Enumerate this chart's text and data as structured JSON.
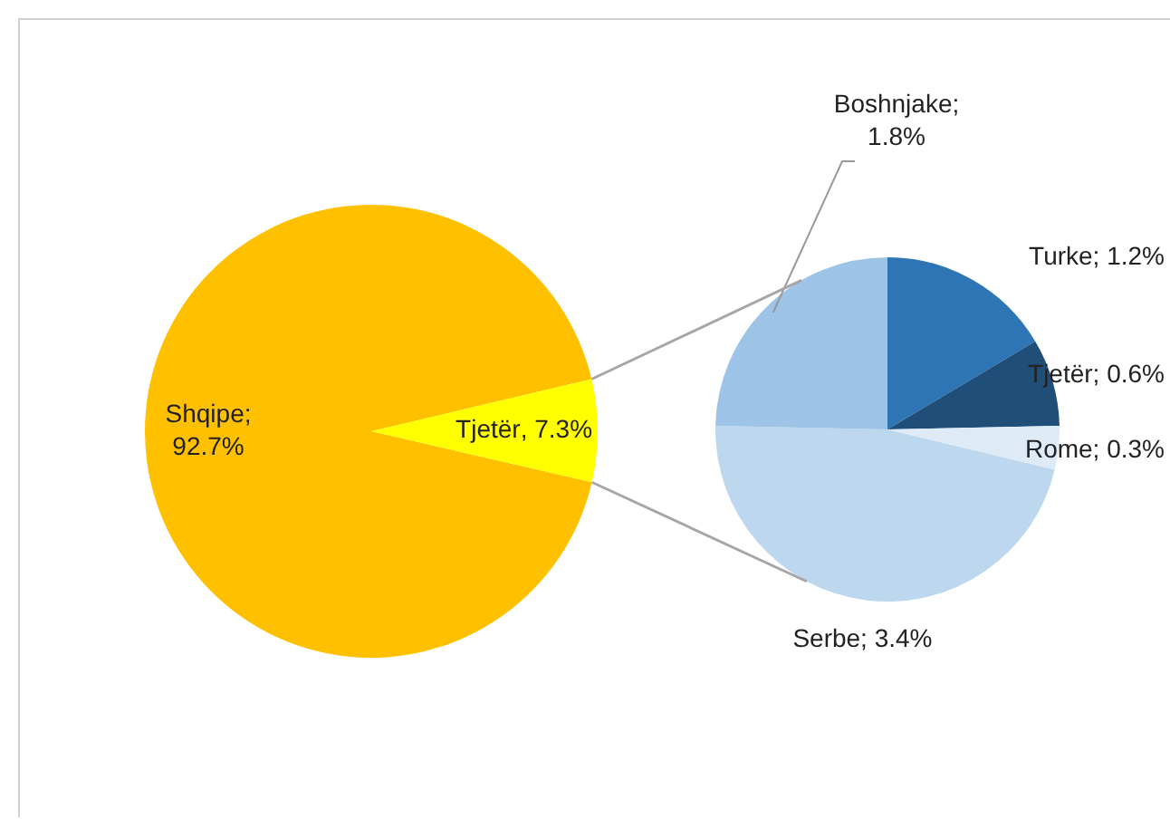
{
  "chart_data": [
    {
      "type": "pie",
      "categories": [
        "Shqipe",
        "Tjetër"
      ],
      "values": [
        92.7,
        7.3
      ],
      "colors": [
        "#ffc000",
        "#ffff00"
      ],
      "value_labels": [
        ";\n92.7%",
        ", 7.3%"
      ]
    },
    {
      "type": "pie",
      "categories": [
        "Turke",
        "Tjetër",
        "Rome",
        "Serbe",
        "Boshnjake"
      ],
      "values": [
        1.2,
        0.6,
        0.3,
        3.4,
        1.8
      ],
      "colors": [
        "#2e75b6",
        "#1f4e79",
        "#deebf7",
        "#bdd7ee",
        "#9dc3e6"
      ],
      "value_labels": [
        "; 1.2%",
        "; 0.6%",
        "; 0.3%",
        "; 3.4%",
        ";\n1.8%"
      ]
    }
  ]
}
